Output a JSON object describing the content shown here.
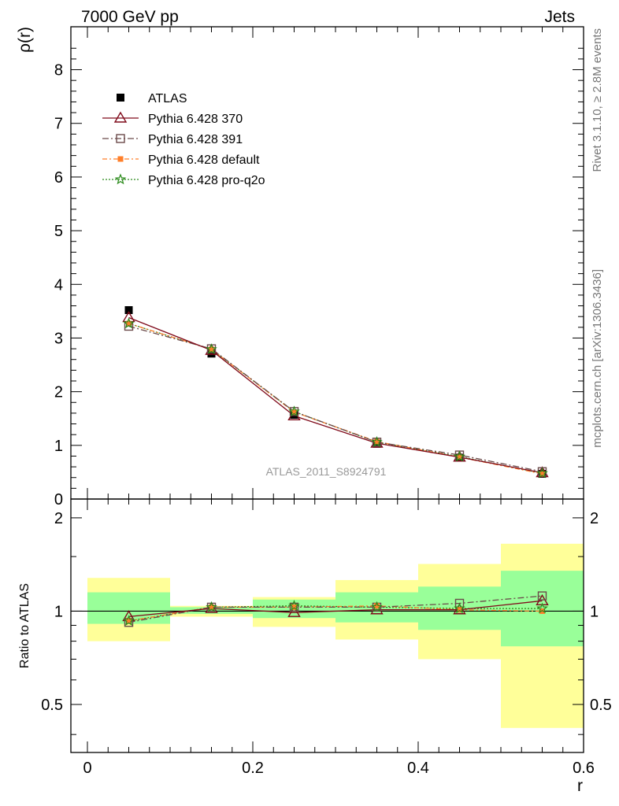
{
  "header": {
    "left": "7000 GeV pp",
    "right": "Jets"
  },
  "side_labels": {
    "rivet": "Rivet 3.1.10, ≥ 2.8M events",
    "mcplots": "mcplots.cern.ch [arXiv:1306.3436]"
  },
  "watermark": "ATLAS_2011_S8924791",
  "colors": {
    "ATLAS": "#000000",
    "p370": "#7f0a1a",
    "p391": "#6b4a4a",
    "pdefault": "#ff7f2a",
    "pq2o": "#2a8a1a",
    "band_outer": "#ffff99",
    "band_inner": "#99ff99"
  },
  "chart_data": [
    {
      "type": "line",
      "xlabel": "",
      "ylabel": "ρ(r)",
      "xlim": [
        -0.02,
        0.6
      ],
      "ylim": [
        0,
        8.8
      ],
      "y_ticks": [
        "0",
        "1",
        "2",
        "3",
        "4",
        "5",
        "6",
        "7",
        "8"
      ],
      "legend_position": "top-left",
      "x": [
        0.05,
        0.15,
        0.25,
        0.35,
        0.45,
        0.55
      ],
      "series": [
        {
          "name": "ATLAS",
          "key": "ATLAS",
          "marker": "filled-square",
          "values": [
            3.52,
            2.71,
            1.57,
            1.03,
            0.77,
            0.47
          ]
        },
        {
          "name": "Pythia 6.428 370",
          "key": "p370",
          "marker": "open-triangle",
          "values": [
            3.38,
            2.77,
            1.55,
            1.04,
            0.78,
            0.49
          ]
        },
        {
          "name": "Pythia 6.428 391",
          "key": "p391",
          "marker": "open-square",
          "values": [
            3.22,
            2.8,
            1.63,
            1.06,
            0.82,
            0.51
          ]
        },
        {
          "name": "Pythia 6.428 default",
          "key": "pdefault",
          "marker": "filled-square-small",
          "values": [
            3.27,
            2.79,
            1.62,
            1.07,
            0.78,
            0.47
          ]
        },
        {
          "name": "Pythia 6.428 pro-q2o",
          "key": "pq2o",
          "marker": "star",
          "values": [
            3.27,
            2.79,
            1.63,
            1.06,
            0.79,
            0.48
          ]
        }
      ]
    },
    {
      "type": "line",
      "xlabel": "r",
      "ylabel": "Ratio to ATLAS",
      "xlim": [
        -0.02,
        0.6
      ],
      "ylim": [
        0.35,
        2.3
      ],
      "log_y": true,
      "x_ticks": [
        "0",
        "0.2",
        "0.4",
        "0.6"
      ],
      "y_ticks": [
        "0.5",
        "1",
        "2"
      ],
      "bands": {
        "edges": [
          0.0,
          0.1,
          0.2,
          0.3,
          0.4,
          0.5,
          0.6
        ],
        "outer": [
          [
            0.8,
            1.28
          ],
          [
            0.96,
            1.04
          ],
          [
            0.89,
            1.11
          ],
          [
            0.81,
            1.26
          ],
          [
            0.7,
            1.42
          ],
          [
            0.42,
            1.65
          ]
        ],
        "inner": [
          [
            0.91,
            1.15
          ],
          [
            0.98,
            1.03
          ],
          [
            0.95,
            1.09
          ],
          [
            0.92,
            1.15
          ],
          [
            0.87,
            1.2
          ],
          [
            0.77,
            1.35
          ]
        ]
      },
      "x": [
        0.05,
        0.15,
        0.25,
        0.35,
        0.45,
        0.55
      ],
      "series": [
        {
          "name": "Pythia 6.428 370",
          "key": "p370",
          "marker": "open-triangle",
          "values": [
            0.96,
            1.02,
            0.99,
            1.01,
            1.01,
            1.08
          ]
        },
        {
          "name": "Pythia 6.428 391",
          "key": "p391",
          "marker": "open-square",
          "values": [
            0.92,
            1.03,
            1.03,
            1.03,
            1.06,
            1.12
          ]
        },
        {
          "name": "Pythia 6.428 default",
          "key": "pdefault",
          "marker": "filled-square-small",
          "values": [
            0.93,
            1.03,
            1.03,
            1.04,
            1.01,
            1.0
          ]
        },
        {
          "name": "Pythia 6.428 pro-q2o",
          "key": "pq2o",
          "marker": "star",
          "values": [
            0.93,
            1.03,
            1.04,
            1.03,
            1.02,
            1.02
          ]
        }
      ]
    }
  ]
}
